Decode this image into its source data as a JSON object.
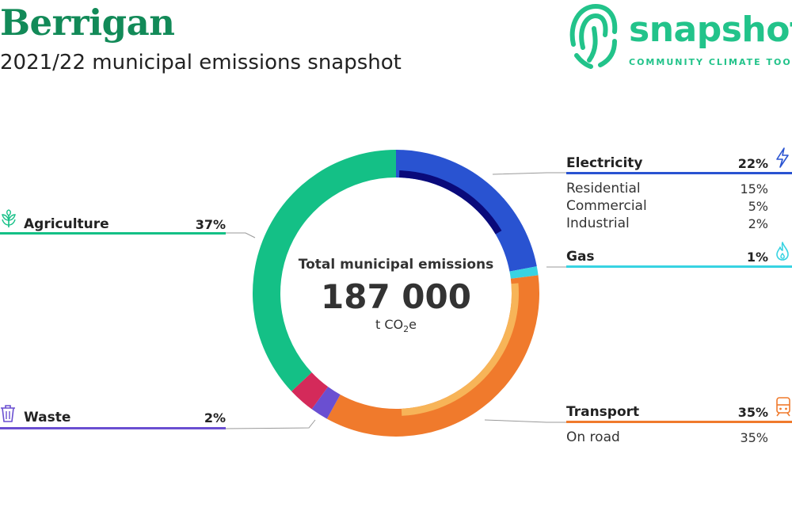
{
  "header": {
    "title": "Berrigan",
    "subtitle": "2021/22 municipal emissions snapshot"
  },
  "logo": {
    "word": "snapshot",
    "tagline": "COMMUNITY CLIMATE TOOL"
  },
  "center": {
    "label": "Total municipal emissions",
    "value": "187 000",
    "unit_prefix": "t CO",
    "unit_sub": "2",
    "unit_suffix": "e"
  },
  "chart_data": {
    "type": "donut",
    "title": "",
    "total": 187000,
    "total_unit": "t CO2e",
    "categories": [
      {
        "name": "Electricity",
        "percent_label": "22%",
        "value": 22,
        "color": "#2953d1",
        "icon": "lightning-icon",
        "sub": [
          {
            "name": "Residential",
            "percent_label": "15%",
            "value": 15
          },
          {
            "name": "Commercial",
            "percent_label": "5%",
            "value": 5
          },
          {
            "name": "Industrial",
            "percent_label": "2%",
            "value": 2
          }
        ]
      },
      {
        "name": "Gas",
        "percent_label": "1%",
        "value": 1,
        "color": "#38d3e2",
        "icon": "flame-icon",
        "sub": []
      },
      {
        "name": "Transport",
        "percent_label": "35%",
        "value": 35,
        "color": "#f07a2c",
        "icon": "train-icon",
        "sub": [
          {
            "name": "On road",
            "percent_label": "35%",
            "value": 35
          }
        ]
      },
      {
        "name": "Waste",
        "percent_label": "2%",
        "value": 2,
        "color": "#6a4fd1",
        "icon": "bin-icon",
        "sub": []
      },
      {
        "name": "Agriculture",
        "percent_label": "37%",
        "value": 37,
        "color": "#14c086",
        "icon": "plant-icon",
        "sub": []
      }
    ],
    "ring_segments": [
      {
        "key": "electricity",
        "value": 22,
        "color": "#2953d1",
        "inner_color": "#0a0a7a"
      },
      {
        "key": "gas",
        "value": 1,
        "color": "#38d3e2"
      },
      {
        "key": "transport",
        "value": 35,
        "color": "#f07a2c",
        "inner_color": "#f7b458"
      },
      {
        "key": "waste",
        "value": 2,
        "color": "#6a4fd1"
      },
      {
        "key": "other",
        "value": 3,
        "color": "#d42a5a"
      },
      {
        "key": "agriculture",
        "value": 37,
        "color": "#14c086"
      }
    ]
  }
}
